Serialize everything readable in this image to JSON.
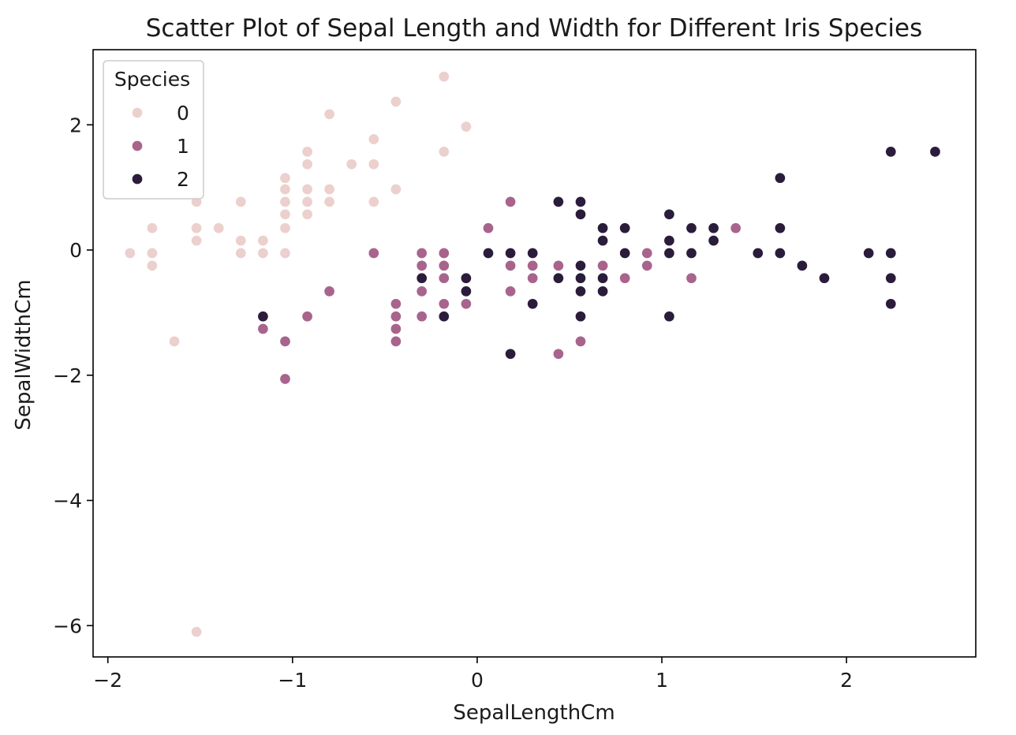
{
  "chart_data": {
    "type": "scatter",
    "title": "Scatter Plot of Sepal Length and Width for Different Iris Species",
    "xlabel": "SepalLengthCm",
    "ylabel": "SepalWidthCm",
    "xlim": [
      -2.08,
      2.7
    ],
    "ylim": [
      -6.5,
      3.2
    ],
    "xticks": [
      -2,
      -1,
      0,
      1,
      2
    ],
    "yticks": [
      -6,
      -4,
      -2,
      0,
      2
    ],
    "xtick_labels": [
      "−2",
      "−1",
      "0",
      "1",
      "2"
    ],
    "ytick_labels": [
      "−6",
      "−4",
      "−2",
      "0",
      "2"
    ],
    "grid": false,
    "legend": {
      "title": "Species",
      "placement": "top-left",
      "entries": [
        "0",
        "1",
        "2"
      ]
    },
    "series": [
      {
        "name": "0",
        "color": "#ebd0cd",
        "points": [
          [
            -1.88,
            -0.05
          ],
          [
            -1.76,
            0.35
          ],
          [
            -1.76,
            -0.05
          ],
          [
            -1.76,
            -0.25
          ],
          [
            -1.64,
            -1.46
          ],
          [
            -1.52,
            0.77
          ],
          [
            -1.52,
            0.35
          ],
          [
            -1.52,
            0.15
          ],
          [
            -1.52,
            -6.1
          ],
          [
            -1.4,
            0.35
          ],
          [
            -1.28,
            0.77
          ],
          [
            -1.28,
            0.15
          ],
          [
            -1.28,
            -0.05
          ],
          [
            -1.16,
            0.15
          ],
          [
            -1.16,
            -0.05
          ],
          [
            -1.04,
            1.15
          ],
          [
            -1.04,
            0.97
          ],
          [
            -1.04,
            0.77
          ],
          [
            -1.04,
            0.57
          ],
          [
            -1.04,
            0.35
          ],
          [
            -1.04,
            -0.05
          ],
          [
            -0.92,
            1.57
          ],
          [
            -0.92,
            1.37
          ],
          [
            -0.92,
            0.97
          ],
          [
            -0.92,
            0.77
          ],
          [
            -0.92,
            0.57
          ],
          [
            -0.8,
            2.17
          ],
          [
            -0.8,
            0.97
          ],
          [
            -0.8,
            0.77
          ],
          [
            -0.68,
            1.37
          ],
          [
            -0.56,
            1.77
          ],
          [
            -0.56,
            1.37
          ],
          [
            -0.56,
            0.77
          ],
          [
            -0.44,
            2.37
          ],
          [
            -0.44,
            0.97
          ],
          [
            -0.18,
            2.77
          ],
          [
            -0.18,
            1.57
          ],
          [
            -0.06,
            1.97
          ]
        ]
      },
      {
        "name": "1",
        "color": "#a8648c",
        "points": [
          [
            -1.16,
            -1.26
          ],
          [
            -1.04,
            -1.46
          ],
          [
            -1.04,
            -2.06
          ],
          [
            -0.92,
            -1.06
          ],
          [
            -0.8,
            -0.66
          ],
          [
            -0.56,
            -0.05
          ],
          [
            -0.44,
            -0.86
          ],
          [
            -0.44,
            -1.06
          ],
          [
            -0.44,
            -1.26
          ],
          [
            -0.44,
            -1.46
          ],
          [
            -0.3,
            -0.05
          ],
          [
            -0.3,
            -0.25
          ],
          [
            -0.3,
            -0.66
          ],
          [
            -0.3,
            -1.06
          ],
          [
            -0.18,
            -0.05
          ],
          [
            -0.18,
            -0.25
          ],
          [
            -0.18,
            -0.45
          ],
          [
            -0.18,
            -0.86
          ],
          [
            -0.06,
            -0.86
          ],
          [
            0.06,
            0.35
          ],
          [
            0.18,
            0.77
          ],
          [
            0.18,
            -0.25
          ],
          [
            0.18,
            -0.66
          ],
          [
            0.3,
            -0.25
          ],
          [
            0.3,
            -0.45
          ],
          [
            0.44,
            -0.25
          ],
          [
            0.44,
            -1.66
          ],
          [
            0.56,
            -1.46
          ],
          [
            0.68,
            -0.25
          ],
          [
            0.8,
            -0.45
          ],
          [
            0.92,
            -0.05
          ],
          [
            0.92,
            -0.25
          ],
          [
            1.16,
            -0.45
          ],
          [
            1.4,
            0.35
          ]
        ]
      },
      {
        "name": "2",
        "color": "#2b1c3b",
        "points": [
          [
            -1.16,
            -1.06
          ],
          [
            -0.3,
            -0.45
          ],
          [
            -0.18,
            -1.06
          ],
          [
            -0.06,
            -0.45
          ],
          [
            -0.06,
            -0.66
          ],
          [
            0.06,
            -0.05
          ],
          [
            0.18,
            -0.05
          ],
          [
            0.18,
            -1.66
          ],
          [
            0.3,
            -0.05
          ],
          [
            0.3,
            -0.86
          ],
          [
            0.44,
            0.77
          ],
          [
            0.44,
            -0.45
          ],
          [
            0.56,
            0.77
          ],
          [
            0.56,
            0.57
          ],
          [
            0.56,
            -0.25
          ],
          [
            0.56,
            -0.45
          ],
          [
            0.56,
            -0.66
          ],
          [
            0.56,
            -1.06
          ],
          [
            0.68,
            0.35
          ],
          [
            0.68,
            0.15
          ],
          [
            0.68,
            -0.45
          ],
          [
            0.68,
            -0.66
          ],
          [
            0.8,
            0.35
          ],
          [
            0.8,
            -0.05
          ],
          [
            1.04,
            0.57
          ],
          [
            1.04,
            0.15
          ],
          [
            1.04,
            -0.05
          ],
          [
            1.04,
            -1.06
          ],
          [
            1.16,
            0.35
          ],
          [
            1.16,
            -0.05
          ],
          [
            1.28,
            0.35
          ],
          [
            1.28,
            0.15
          ],
          [
            1.52,
            -0.05
          ],
          [
            1.64,
            1.15
          ],
          [
            1.64,
            0.35
          ],
          [
            1.64,
            -0.05
          ],
          [
            1.76,
            -0.25
          ],
          [
            1.88,
            -0.45
          ],
          [
            2.12,
            -0.05
          ],
          [
            2.24,
            1.57
          ],
          [
            2.24,
            -0.05
          ],
          [
            2.24,
            -0.45
          ],
          [
            2.24,
            -0.86
          ],
          [
            2.48,
            1.57
          ]
        ]
      }
    ]
  }
}
